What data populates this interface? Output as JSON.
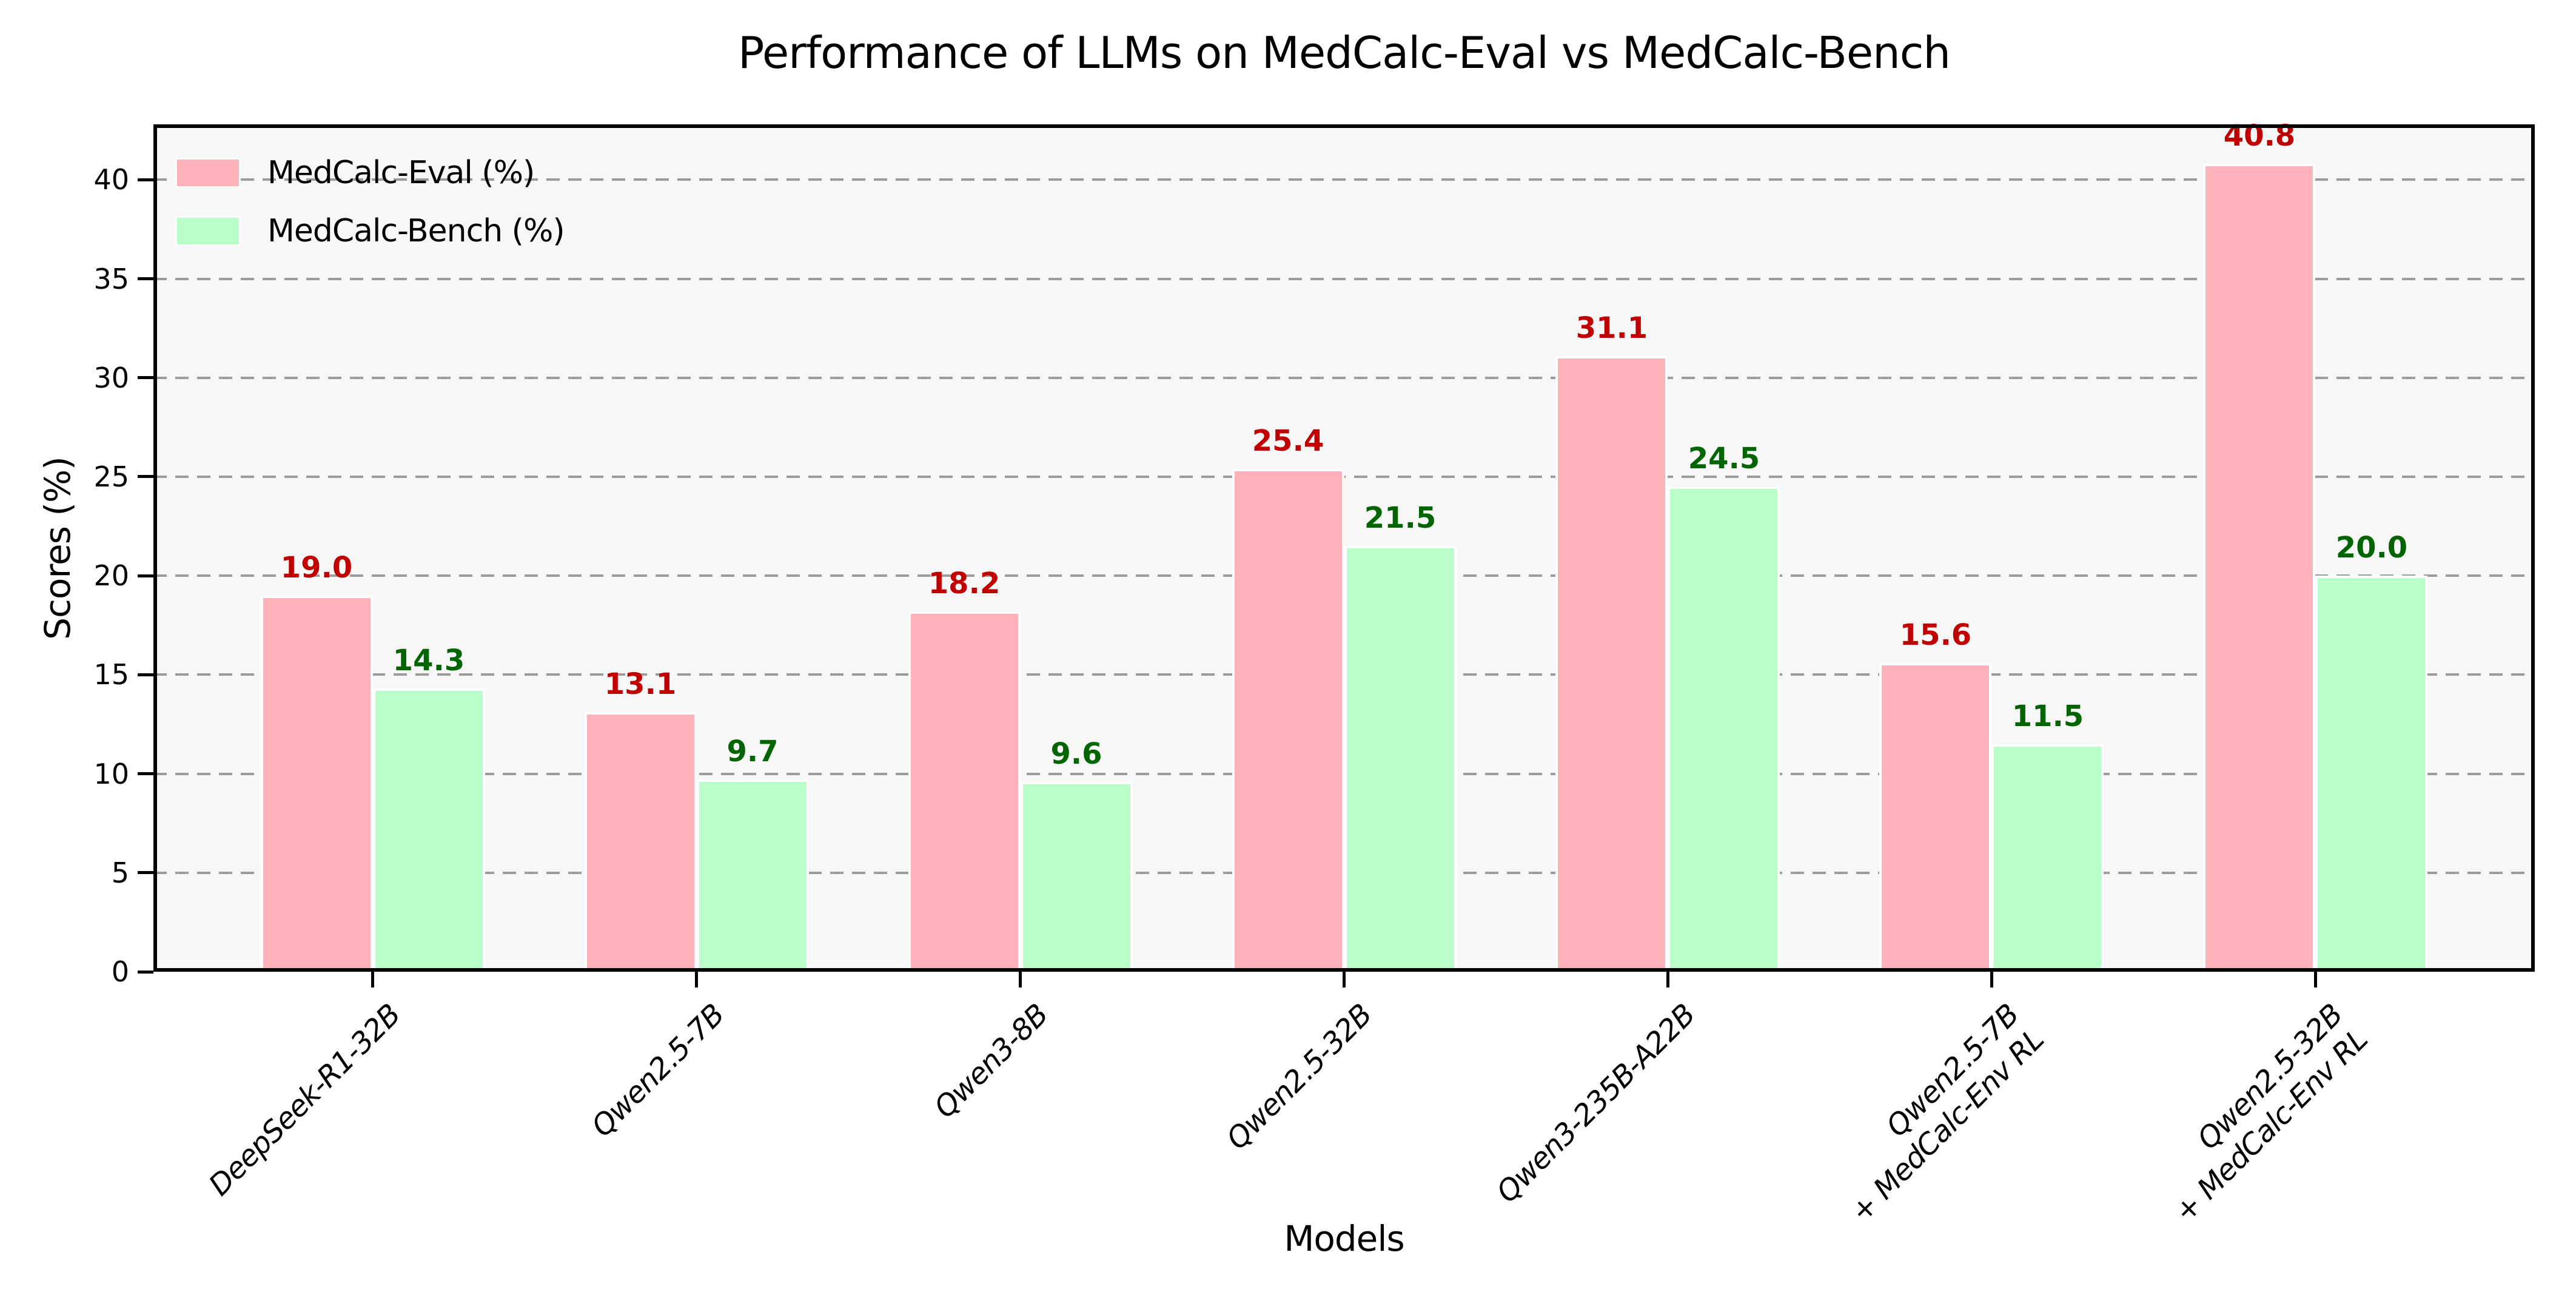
{
  "colors": {
    "figure_bg": "#ffffff",
    "plot_bg": "#f7f7f7",
    "spine": "#000000",
    "grid": "#9c9c9c",
    "tick_text": "#000000"
  },
  "chart_data": {
    "type": "bar",
    "title": "Performance of LLMs on MedCalc-Eval vs MedCalc-Bench",
    "xlabel": "Models",
    "ylabel": "Scores (%)",
    "ylim": [
      0,
      42.8
    ],
    "yticks": [
      0,
      5,
      10,
      15,
      20,
      25,
      30,
      35,
      40
    ],
    "grid": "horizontal-dashed",
    "legend": {
      "position": "upper-left",
      "frame": false
    },
    "categories": [
      [
        "DeepSeek-R1-32B"
      ],
      [
        "Qwen2.5-7B"
      ],
      [
        "Qwen3-8B"
      ],
      [
        "Qwen2.5-32B"
      ],
      [
        "Qwen3-235B-A22B"
      ],
      [
        "Qwen2.5-7B",
        "+ MedCalc-Env RL"
      ],
      [
        "Qwen2.5-32B",
        "+ MedCalc-Env RL"
      ]
    ],
    "series": [
      {
        "name": "MedCalc-Eval (%)",
        "color": "#ffb2ba",
        "label_color": "#c00000",
        "values": [
          19.0,
          13.1,
          18.2,
          25.4,
          31.1,
          15.6,
          40.8
        ]
      },
      {
        "name": "MedCalc-Bench (%)",
        "color": "#baffc9",
        "label_color": "#006400",
        "values": [
          14.3,
          9.7,
          9.6,
          21.5,
          24.5,
          11.5,
          20.0
        ]
      }
    ]
  }
}
